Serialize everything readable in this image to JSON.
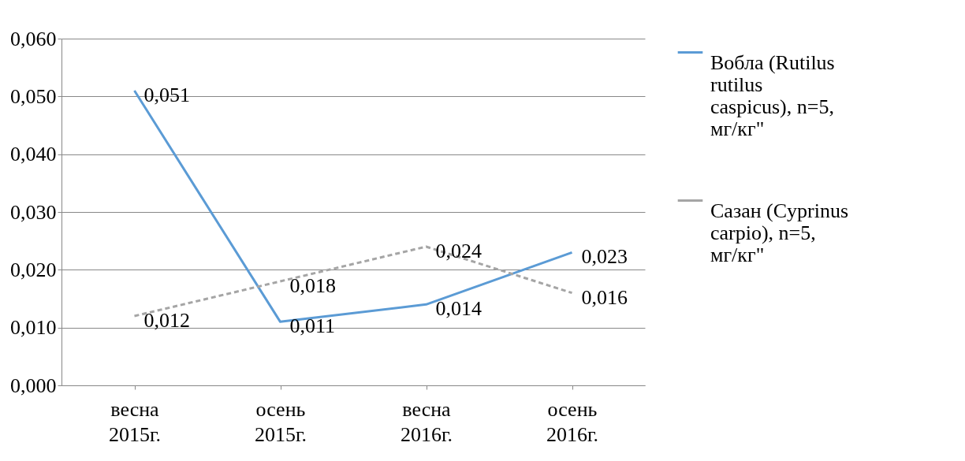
{
  "chart_data": {
    "type": "line",
    "categories": [
      "весна 2015г.",
      "осень 2015г.",
      "весна 2016г.",
      "осень 2016г."
    ],
    "series": [
      {
        "name": "Вобла (Rutilus rutilus caspicus), n=5, мг/кг\"",
        "color": "#5b9bd5",
        "line_style": "solid",
        "values": [
          0.051,
          0.011,
          0.014,
          0.023
        ],
        "value_labels": [
          "0,051",
          "0,011",
          "0,014",
          "0,023"
        ]
      },
      {
        "name": "Сазан (Cyprinus carpio), n=5, мг/кг\"",
        "color": "#a5a5a5",
        "line_style": "dashed",
        "values": [
          0.012,
          0.018,
          0.024,
          0.016
        ],
        "value_labels": [
          "0,012",
          "0,018",
          "0,024",
          "0,016"
        ]
      }
    ],
    "ylim": [
      0,
      0.06
    ],
    "yticks": [
      {
        "value": 0,
        "label": "0,000"
      },
      {
        "value": 0.01,
        "label": "0,010"
      },
      {
        "value": 0.02,
        "label": "0,020"
      },
      {
        "value": 0.03,
        "label": "0,030"
      },
      {
        "value": 0.04,
        "label": "0,040"
      },
      {
        "value": 0.05,
        "label": "0,050"
      },
      {
        "value": 0.06,
        "label": "0,060"
      }
    ],
    "grid": "y",
    "legend": "right",
    "marker": "none"
  }
}
